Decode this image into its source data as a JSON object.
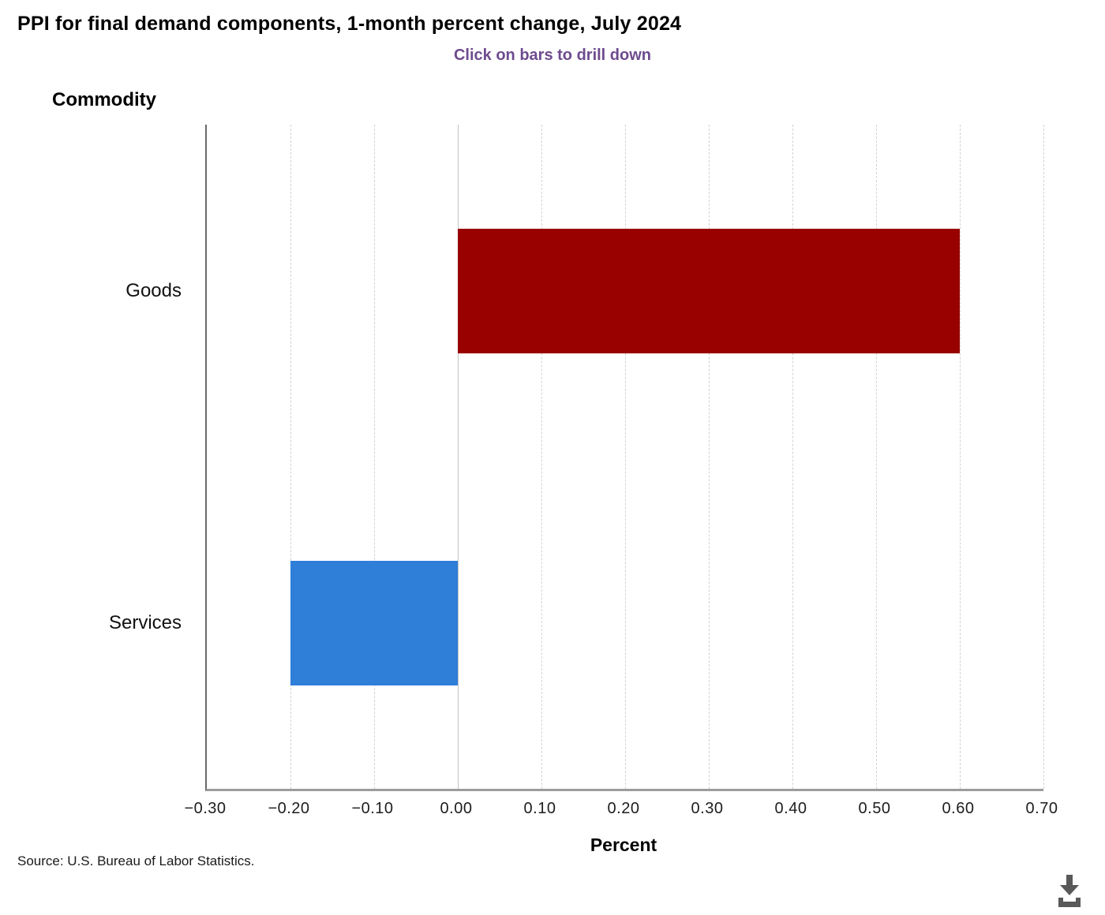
{
  "page": {
    "source": "Source: U.S. Bureau of Labor Statistics."
  },
  "chart_data": {
    "type": "bar",
    "orientation": "horizontal",
    "title": "PPI for final demand components, 1-month percent change, July 2024",
    "subtitle": "Click on bars to drill down",
    "y_axis_title": "Commodity",
    "xlabel": "Percent",
    "categories": [
      "Goods",
      "Services"
    ],
    "values": [
      0.6,
      -0.2
    ],
    "bar_colors": [
      "#990000",
      "#2f7ed8"
    ],
    "xlim": [
      -0.3,
      0.7
    ],
    "xticks": [
      {
        "value": -0.3,
        "label": "−0.30"
      },
      {
        "value": -0.2,
        "label": "−0.20"
      },
      {
        "value": -0.1,
        "label": "−0.10"
      },
      {
        "value": 0.0,
        "label": "0.00"
      },
      {
        "value": 0.1,
        "label": "0.10"
      },
      {
        "value": 0.2,
        "label": "0.20"
      },
      {
        "value": 0.3,
        "label": "0.30"
      },
      {
        "value": 0.4,
        "label": "0.40"
      },
      {
        "value": 0.5,
        "label": "0.50"
      },
      {
        "value": 0.6,
        "label": "0.60"
      },
      {
        "value": 0.7,
        "label": "0.70"
      }
    ],
    "grid": "vertical-dashed",
    "legend": "none",
    "icon_color": "#595959"
  }
}
